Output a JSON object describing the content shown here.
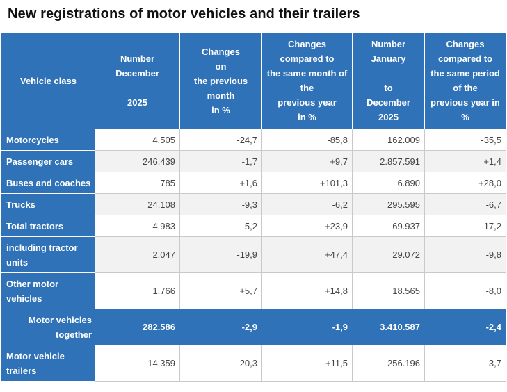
{
  "title": "New registrations of motor vehicles and their trailers",
  "header": {
    "col0": "Vehicle class",
    "col1": [
      "Number",
      "December",
      "",
      "2025"
    ],
    "col2": [
      "Changes",
      "on",
      "the previous",
      "month",
      "in %"
    ],
    "col3": [
      "Changes",
      "compared to",
      "the same month of",
      "the",
      "previous year",
      "in %"
    ],
    "col4": [
      "Number",
      "January",
      "",
      "to",
      "December",
      "2025"
    ],
    "col5": [
      "Changes",
      "compared to",
      "the same period",
      "of the",
      "previous year in",
      "%"
    ]
  },
  "rows": [
    {
      "label": "Motorcycles",
      "values": [
        "4.505",
        "-24,7",
        "-85,8",
        "162.009",
        "-35,5"
      ]
    },
    {
      "label": "Passenger cars",
      "values": [
        "246.439",
        "-1,7",
        "+9,7",
        "2.857.591",
        "+1,4"
      ]
    },
    {
      "label": "Buses and coaches",
      "values": [
        "785",
        "+1,6",
        "+101,3",
        "6.890",
        "+28,0"
      ]
    },
    {
      "label": "Trucks",
      "values": [
        "24.108",
        "-9,3",
        "-6,2",
        "295.595",
        "-6,7"
      ]
    },
    {
      "label": "Total tractors",
      "values": [
        "4.983",
        "-5,2",
        "+23,9",
        "69.937",
        "-17,2"
      ]
    },
    {
      "label": "including tractor units",
      "values": [
        "2.047",
        "-19,9",
        "+47,4",
        "29.072",
        "-9,8"
      ]
    },
    {
      "label": "Other motor vehicles",
      "values": [
        "1.766",
        "+5,7",
        "+14,8",
        "18.565",
        "-8,0"
      ]
    },
    {
      "label": "Motor vehicles together",
      "values": [
        "282.586",
        "-2,9",
        "-1,9",
        "3.410.587",
        "-2,4"
      ]
    },
    {
      "label": "Motor vehicle trailers",
      "values": [
        "14.359",
        "-20,3",
        "+11,5",
        "256.196",
        "-3,7"
      ]
    }
  ],
  "colors": {
    "header_blue": "#2f72b8",
    "stripe": "#f2f2f2"
  }
}
